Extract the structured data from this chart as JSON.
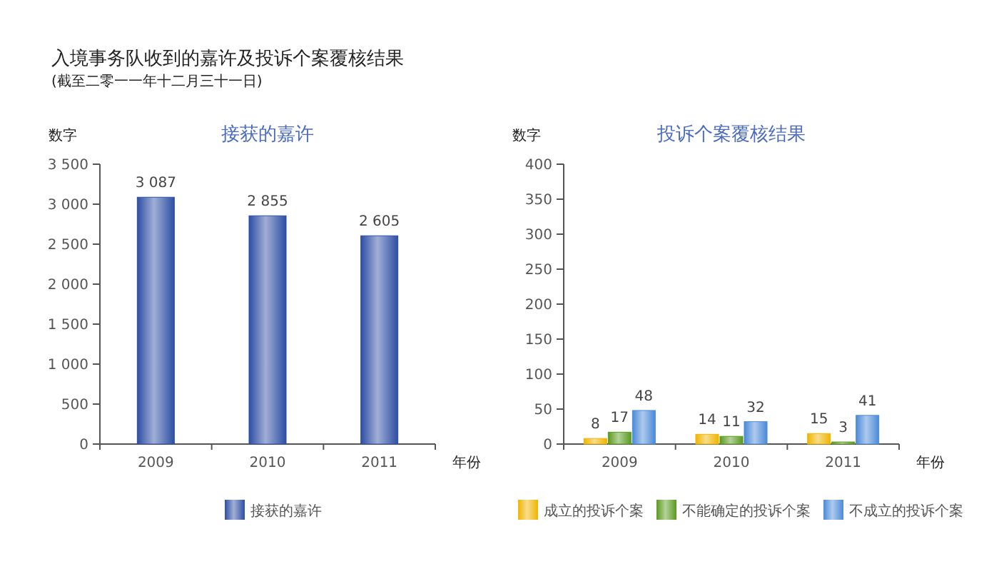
{
  "chart_data": [
    {
      "type": "bar",
      "title": "接获的嘉许",
      "annotations": [
        "入境事务队收到的嘉许及投诉个案覆核结果",
        "(截至二零一一年十二月三十一日)"
      ],
      "xlabel": "年份",
      "ylabel": "数字",
      "categories": [
        "2009",
        "2010",
        "2011"
      ],
      "series": [
        {
          "name": "接获的嘉许",
          "color": "#2d4ea3",
          "values": [
            3087,
            2855,
            2605
          ],
          "value_labels": [
            "3 087",
            "2 855",
            "2 605"
          ]
        }
      ],
      "ylim": [
        0,
        3500
      ],
      "yticks": [
        0,
        500,
        {
          "value": 1000,
          "label": "1 000"
        },
        {
          "value": 1500,
          "label": "1 500"
        },
        {
          "value": 2000,
          "label": "2 000"
        },
        {
          "value": 2500,
          "label": "2 500"
        },
        {
          "value": 3000,
          "label": "3 000"
        },
        {
          "value": 3500,
          "label": "3 500"
        }
      ],
      "legend": "bottom"
    },
    {
      "type": "bar",
      "title": "投诉个案覆核结果",
      "xlabel": "年份",
      "ylabel": "数字",
      "categories": [
        "2009",
        "2010",
        "2011"
      ],
      "series": [
        {
          "name": "成立的投诉个案",
          "color": "#f0b400",
          "values": [
            8,
            14,
            15
          ]
        },
        {
          "name": "不能确定的投诉个案",
          "color": "#5a9a1e",
          "values": [
            17,
            11,
            3
          ]
        },
        {
          "name": "不成立的投诉个案",
          "color": "#4a8ad8",
          "values": [
            48,
            32,
            41
          ]
        }
      ],
      "ylim": [
        0,
        400
      ],
      "yticks": [
        0,
        50,
        100,
        150,
        200,
        250,
        300,
        350,
        400
      ],
      "data_labels": true,
      "legend": "bottom"
    }
  ]
}
